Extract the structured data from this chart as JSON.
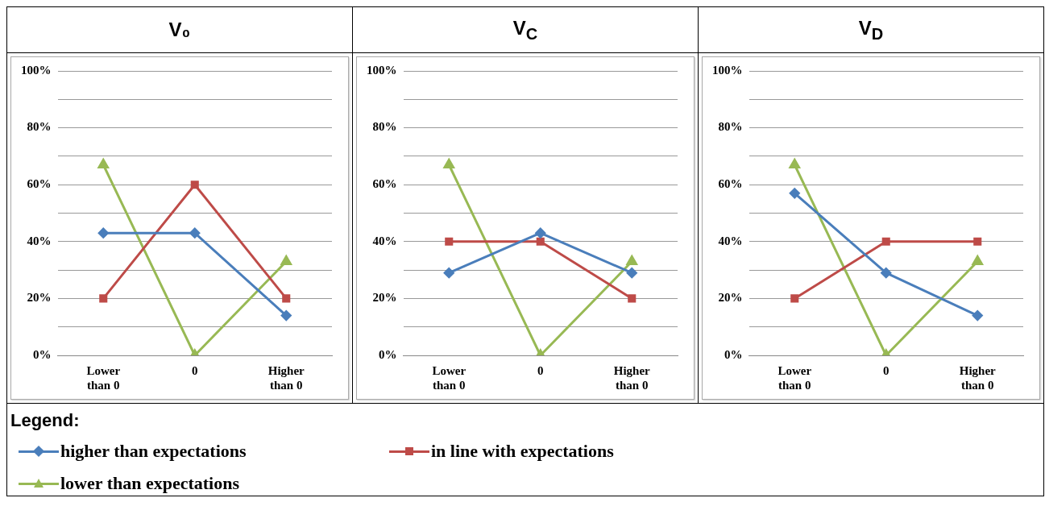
{
  "chart_data": [
    {
      "type": "line",
      "title": "V₀",
      "categories": [
        "Lower than 0",
        "0",
        "Higher than 0"
      ],
      "ylim": [
        0,
        100
      ],
      "yticks": [
        {
          "value": 0,
          "label": "0%"
        },
        {
          "value": 10,
          "label": null
        },
        {
          "value": 20,
          "label": "20%"
        },
        {
          "value": 30,
          "label": null
        },
        {
          "value": 40,
          "label": "40%"
        },
        {
          "value": 50,
          "label": null
        },
        {
          "value": 60,
          "label": "60%"
        },
        {
          "value": 70,
          "label": null
        },
        {
          "value": 80,
          "label": "80%"
        },
        {
          "value": 90,
          "label": null
        },
        {
          "value": 100,
          "label": "100%"
        }
      ],
      "grid": "y",
      "legend": "bottom",
      "legend_title": "Legend:",
      "series": [
        {
          "name": "higher than expectations",
          "color": "#4a7ebb",
          "marker": "diamond",
          "values": [
            43,
            43,
            14
          ]
        },
        {
          "name": "in line with expectations",
          "color": "#be4b48",
          "marker": "square",
          "values": [
            20,
            60,
            20
          ]
        },
        {
          "name": "lower than expectations",
          "color": "#98b954",
          "marker": "triangle",
          "values": [
            67,
            0,
            33
          ]
        }
      ]
    },
    {
      "type": "line",
      "title": "V$_{C}$",
      "categories": [
        "Lower than 0",
        "0",
        "Higher than 0"
      ],
      "ylim": [
        0,
        100
      ],
      "yticks": [
        {
          "value": 0,
          "label": "0%"
        },
        {
          "value": 10,
          "label": null
        },
        {
          "value": 20,
          "label": "20%"
        },
        {
          "value": 30,
          "label": null
        },
        {
          "value": 40,
          "label": "40%"
        },
        {
          "value": 50,
          "label": null
        },
        {
          "value": 60,
          "label": "60%"
        },
        {
          "value": 70,
          "label": null
        },
        {
          "value": 80,
          "label": "80%"
        },
        {
          "value": 90,
          "label": null
        },
        {
          "value": 100,
          "label": "100%"
        }
      ],
      "grid": "y",
      "series": [
        {
          "color": "#4a7ebb",
          "marker": "diamond",
          "values": [
            29,
            43,
            29
          ]
        },
        {
          "color": "#be4b48",
          "marker": "square",
          "values": [
            40,
            40,
            20
          ]
        },
        {
          "color": "#98b954",
          "marker": "triangle",
          "values": [
            67,
            0,
            33
          ]
        }
      ]
    },
    {
      "type": "line",
      "title": "V$_{D}$",
      "categories": [
        "Lower than 0",
        "0",
        "Higher than 0"
      ],
      "ylim": [
        0,
        100
      ],
      "yticks": [
        {
          "value": 0,
          "label": "0%"
        },
        {
          "value": 10,
          "label": null
        },
        {
          "value": 20,
          "label": "20%"
        },
        {
          "value": 30,
          "label": null
        },
        {
          "value": 40,
          "label": "40%"
        },
        {
          "value": 50,
          "label": null
        },
        {
          "value": 60,
          "label": "60%"
        },
        {
          "value": 70,
          "label": null
        },
        {
          "value": 80,
          "label": "80%"
        },
        {
          "value": 90,
          "label": null
        },
        {
          "value": 100,
          "label": "100%"
        }
      ],
      "grid": "y",
      "series": [
        {
          "color": "#4a7ebb",
          "marker": "diamond",
          "values": [
            57,
            29,
            14
          ]
        },
        {
          "color": "#be4b48",
          "marker": "square",
          "values": [
            20,
            40,
            40
          ]
        },
        {
          "color": "#98b954",
          "marker": "triangle",
          "values": [
            67,
            0,
            33
          ]
        }
      ]
    }
  ]
}
